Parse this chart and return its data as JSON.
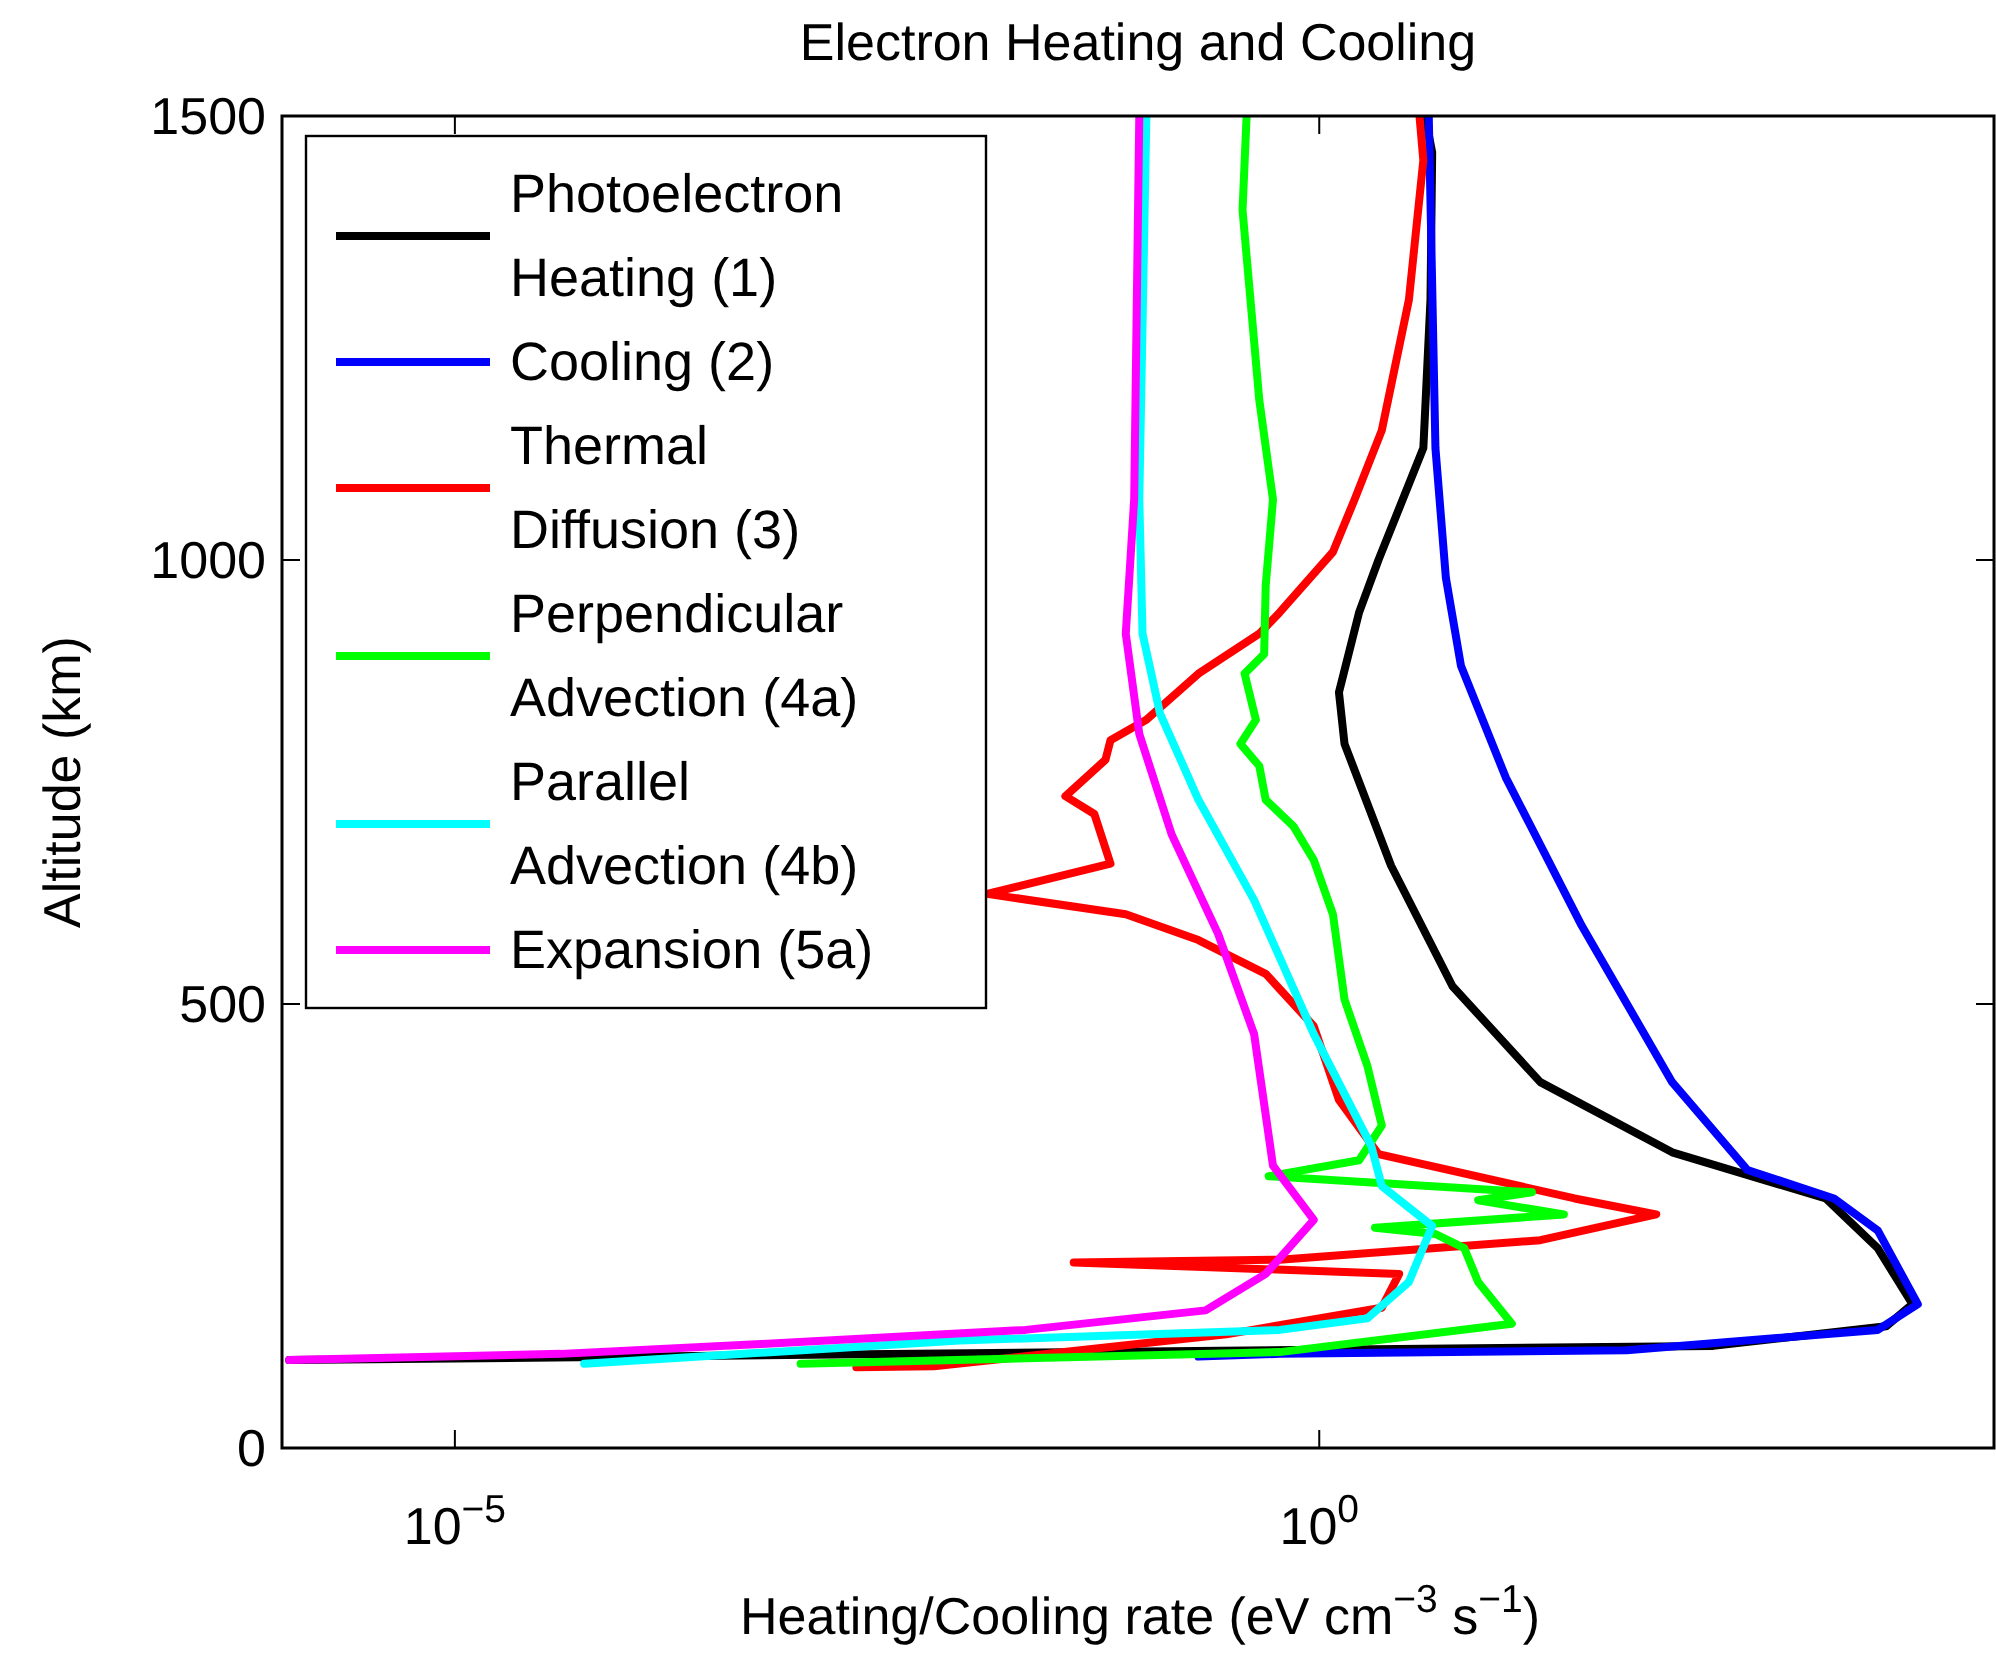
{
  "chart_data": {
    "type": "line",
    "title": "Electron Heating and Cooling",
    "xlabel": "Heating/Cooling rate (eV cm$^{−3}$ s$^{−1}$)",
    "ylabel": "Altitude (km)",
    "log": "x",
    "xlim": [
      1e-06,
      8000
    ],
    "xticks": [
      {
        "value": 1e-05,
        "label": "10$^{−5}$"
      },
      {
        "value": 1,
        "label": "10$^{0}$"
      }
    ],
    "ylim": [
      0,
      1500
    ],
    "yticks": [
      0,
      500,
      1000,
      1500
    ],
    "grid": false,
    "legend": "top left",
    "line_style": "solid",
    "marker": "none",
    "series": [
      {
        "name": "Photoelectron Heating (1)",
        "color": "#000000",
        "x": [
          4.1,
          4.5,
          4.4,
          4.0,
          2.2,
          1.7,
          1.3,
          1.4,
          2.6,
          5.9,
          19,
          110,
          850,
          1700,
          2700,
          1900,
          190,
          1.1e-06
        ],
        "values": [
          1500,
          1459,
          1293,
          1126,
          1000,
          941,
          851,
          793,
          656,
          520,
          412,
          333,
          281,
          225,
          162,
          137,
          115,
          99
        ]
      },
      {
        "name": "Cooling (2)",
        "color": "#0000ff",
        "x": [
          4.3,
          4.7,
          5.4,
          6.6,
          12,
          33,
          110,
          300,
          950,
          1700,
          2900,
          1700,
          60,
          0.59,
          0.2
        ],
        "values": [
          1500,
          1126,
          980,
          881,
          755,
          588,
          412,
          313,
          281,
          245,
          162,
          133,
          110,
          106,
          103
        ]
      },
      {
        "name": "Thermal Diffusion (3)",
        "color": "#ff0000",
        "x": [
          3.8,
          4.0,
          3.3,
          2.3,
          1.6,
          1.2,
          0.59,
          0.45,
          0.2,
          0.1,
          0.062,
          0.058,
          0.034,
          0.05,
          0.062,
          0.012,
          0.076,
          0.2,
          0.49,
          0.93,
          1.3,
          2.2,
          30,
          89,
          19,
          0.59,
          0.038,
          2.9,
          2.3,
          0.29,
          0.0059,
          0.0021
        ],
        "values": [
          1500,
          1450,
          1293,
          1146,
          1068,
          1009,
          941,
          917,
          872,
          820,
          797,
          775,
          734,
          714,
          658,
          624,
          601,
          572,
          534,
          475,
          392,
          331,
          281,
          263,
          234,
          212,
          209,
          196,
          158,
          128,
          92,
          91
        ]
      },
      {
        "name": "Perpendicular Advection (4a)",
        "color": "#00ff00",
        "x": [
          0.38,
          0.36,
          0.45,
          0.54,
          0.49,
          0.48,
          0.37,
          0.43,
          0.35,
          0.45,
          0.49,
          0.71,
          0.93,
          1.2,
          1.4,
          1.9,
          2.3,
          1.7,
          0.51,
          17,
          8.3,
          26,
          2.1,
          4.7,
          6.9,
          8.3,
          13,
          0.59,
          0.001
        ],
        "values": [
          1500,
          1394,
          1180,
          1068,
          971,
          894,
          872,
          820,
          793,
          768,
          730,
          700,
          662,
          601,
          505,
          430,
          363,
          324,
          306,
          288,
          279,
          263,
          248,
          241,
          225,
          187,
          140,
          108,
          95
        ]
      },
      {
        "name": "Parallel Advection (4b)",
        "color": "#00ffff",
        "x": [
          0.1,
          0.091,
          0.095,
          0.12,
          0.2,
          0.42,
          0.93,
          2.0,
          2.3,
          4.5,
          3.3,
          1.9,
          0.59,
          0.0083,
          5.6e-05
        ],
        "values": [
          1500,
          1068,
          917,
          827,
          730,
          617,
          466,
          340,
          295,
          250,
          187,
          146,
          133,
          121,
          95
        ]
      },
      {
        "name": "Expansion (5a)",
        "color": "#ff00ff",
        "x": [
          0.091,
          0.085,
          0.076,
          0.091,
          0.14,
          0.26,
          0.42,
          0.54,
          0.93,
          0.49,
          0.22,
          0.02,
          0.00059,
          4.1e-05,
          1.1e-06
        ],
        "values": [
          1500,
          1068,
          917,
          804,
          691,
          579,
          466,
          318,
          257,
          196,
          155,
          133,
          117,
          106,
          99
        ]
      }
    ]
  }
}
